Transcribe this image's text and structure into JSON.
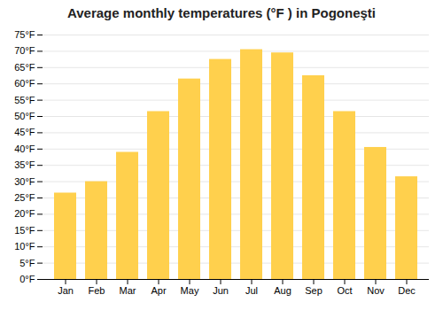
{
  "chart_data": {
    "type": "bar",
    "title": "Average monthly temperatures (°F ) in Pogoneşti",
    "categories": [
      "Jan",
      "Feb",
      "Mar",
      "Apr",
      "May",
      "Jun",
      "Jul",
      "Aug",
      "Sep",
      "Oct",
      "Nov",
      "Dec"
    ],
    "values": [
      26.5,
      30.0,
      39.0,
      51.5,
      61.5,
      67.5,
      70.5,
      69.5,
      62.5,
      51.5,
      40.5,
      31.5
    ],
    "color": "#FFD04D",
    "ylim": [
      0,
      75
    ],
    "yticks": [
      {
        "value": 0,
        "label": "0°F"
      },
      {
        "value": 5,
        "label": "5°F"
      },
      {
        "value": 10,
        "label": "10°F"
      },
      {
        "value": 15,
        "label": "15°F"
      },
      {
        "value": 20,
        "label": "20°F"
      },
      {
        "value": 25,
        "label": "25°F"
      },
      {
        "value": 30,
        "label": "30°F"
      },
      {
        "value": 35,
        "label": "35°F"
      },
      {
        "value": 40,
        "label": "40°F"
      },
      {
        "value": 45,
        "label": "45°F"
      },
      {
        "value": 50,
        "label": "50°F"
      },
      {
        "value": 55,
        "label": "55°F"
      },
      {
        "value": 60,
        "label": "60°F"
      },
      {
        "value": 65,
        "label": "65°F"
      },
      {
        "value": 70,
        "label": "70°F"
      },
      {
        "value": 75,
        "label": "75°F"
      }
    ],
    "grid": true
  }
}
